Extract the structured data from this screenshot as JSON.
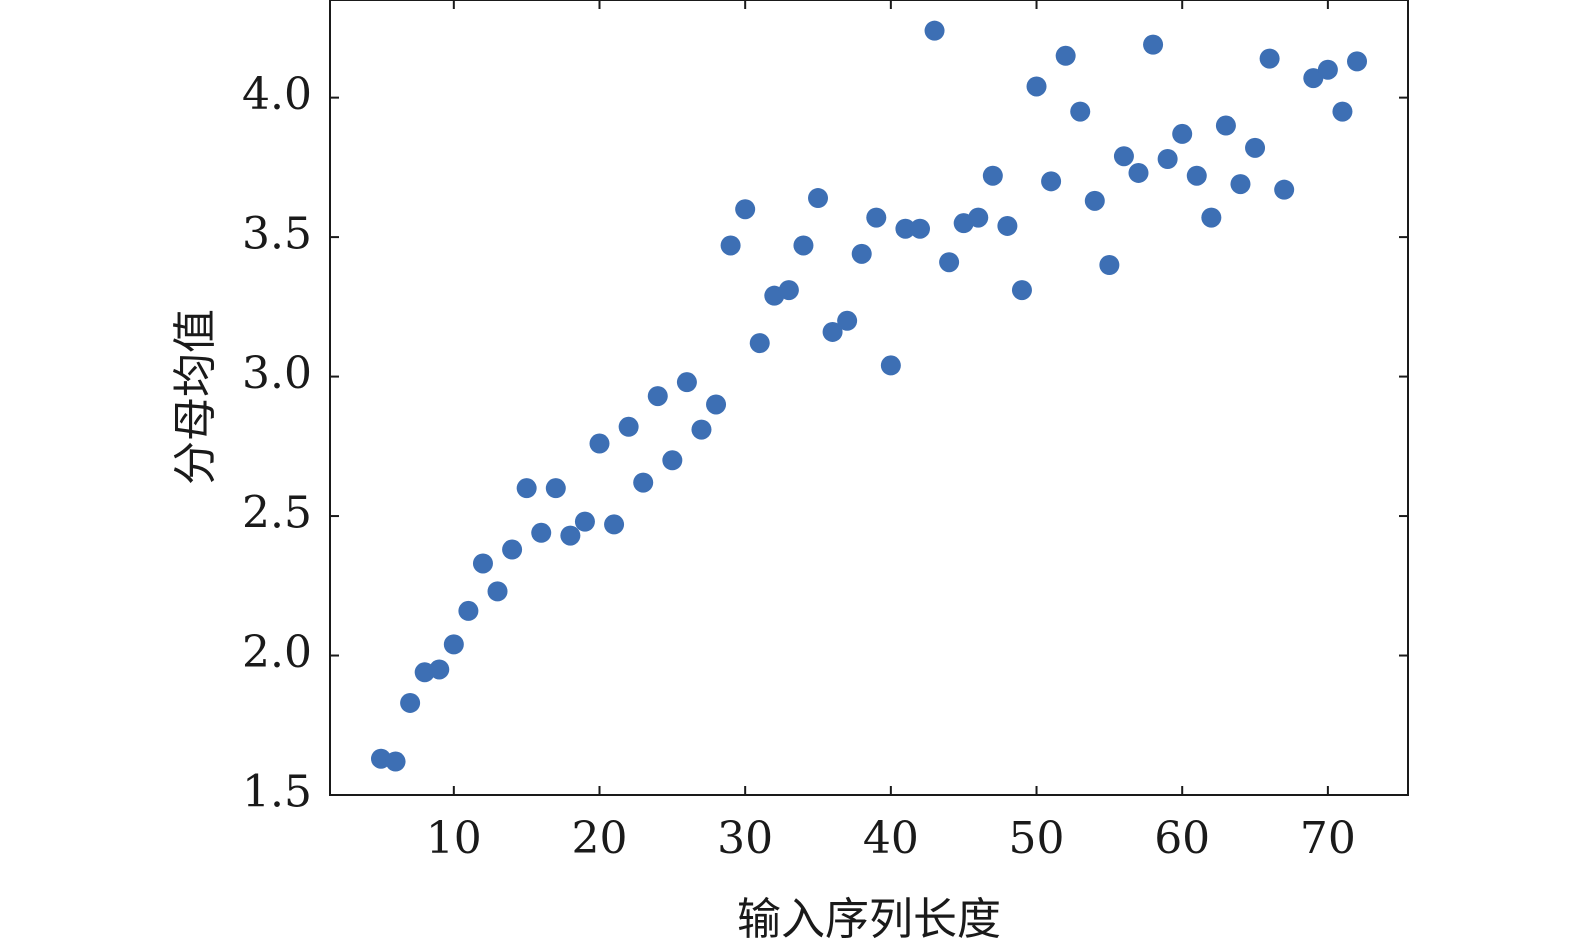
{
  "chart_data": {
    "type": "scatter",
    "title": "",
    "xlabel": "输入序列长度",
    "ylabel": "分母均值",
    "xlim": [
      1.5,
      75.5
    ],
    "ylim": [
      1.5,
      4.35
    ],
    "xticks": [
      10,
      20,
      30,
      40,
      50,
      60,
      70
    ],
    "xtick_labels": [
      "10",
      "20",
      "30",
      "40",
      "50",
      "60",
      "70"
    ],
    "yticks": [
      1.5,
      2.0,
      2.5,
      3.0,
      3.5,
      4.0
    ],
    "ytick_labels": [
      "1.5",
      "2.0",
      "2.5",
      "3.0",
      "3.5",
      "4.0"
    ],
    "grid": false,
    "legend": "none",
    "marker_color": "#3d6fb4",
    "points": [
      [
        5,
        1.63
      ],
      [
        6,
        1.62
      ],
      [
        7,
        1.83
      ],
      [
        8,
        1.94
      ],
      [
        9,
        1.95
      ],
      [
        10,
        2.04
      ],
      [
        11,
        2.16
      ],
      [
        12,
        2.33
      ],
      [
        13,
        2.23
      ],
      [
        14,
        2.38
      ],
      [
        15,
        2.6
      ],
      [
        16,
        2.44
      ],
      [
        17,
        2.6
      ],
      [
        18,
        2.43
      ],
      [
        19,
        2.48
      ],
      [
        20,
        2.76
      ],
      [
        21,
        2.47
      ],
      [
        22,
        2.82
      ],
      [
        23,
        2.62
      ],
      [
        24,
        2.93
      ],
      [
        25,
        2.7
      ],
      [
        26,
        2.98
      ],
      [
        27,
        2.81
      ],
      [
        28,
        2.9
      ],
      [
        29,
        3.47
      ],
      [
        30,
        3.6
      ],
      [
        31,
        3.12
      ],
      [
        32,
        3.29
      ],
      [
        33,
        3.31
      ],
      [
        34,
        3.47
      ],
      [
        35,
        3.64
      ],
      [
        36,
        3.16
      ],
      [
        37,
        3.2
      ],
      [
        38,
        3.44
      ],
      [
        39,
        3.57
      ],
      [
        40,
        3.04
      ],
      [
        41,
        3.53
      ],
      [
        42,
        3.53
      ],
      [
        43,
        4.24
      ],
      [
        44,
        3.41
      ],
      [
        45,
        3.55
      ],
      [
        46,
        3.57
      ],
      [
        47,
        3.72
      ],
      [
        48,
        3.54
      ],
      [
        49,
        3.31
      ],
      [
        50,
        4.04
      ],
      [
        51,
        3.7
      ],
      [
        52,
        4.15
      ],
      [
        53,
        3.95
      ],
      [
        54,
        3.63
      ],
      [
        55,
        3.4
      ],
      [
        56,
        3.79
      ],
      [
        57,
        3.73
      ],
      [
        58,
        4.19
      ],
      [
        59,
        3.78
      ],
      [
        60,
        3.87
      ],
      [
        61,
        3.72
      ],
      [
        62,
        3.57
      ],
      [
        63,
        3.9
      ],
      [
        64,
        3.69
      ],
      [
        65,
        3.82
      ],
      [
        66,
        4.14
      ],
      [
        67,
        3.67
      ],
      [
        69,
        4.07
      ],
      [
        70,
        4.1
      ],
      [
        71,
        3.95
      ],
      [
        72,
        4.13
      ]
    ]
  }
}
